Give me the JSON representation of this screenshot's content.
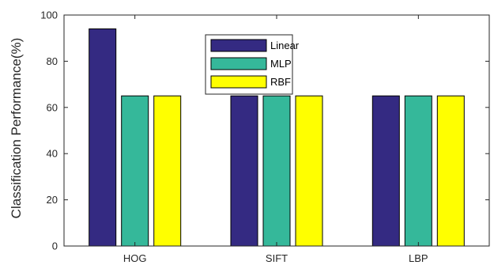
{
  "chart_data": {
    "type": "bar",
    "categories": [
      "HOG",
      "SIFT",
      "LBP"
    ],
    "series": [
      {
        "name": "Linear",
        "color": "#342a82",
        "values": [
          94,
          65,
          65
        ]
      },
      {
        "name": "MLP",
        "color": "#35b89a",
        "values": [
          65,
          65,
          65
        ]
      },
      {
        "name": "RBF",
        "color": "#ffff00",
        "values": [
          65,
          65,
          65
        ]
      }
    ],
    "ylabel": "Classification Performance(%)",
    "xlabel": "",
    "ylim": [
      0,
      100
    ],
    "yticks": [
      0,
      20,
      40,
      60,
      80,
      100
    ],
    "grid": false,
    "legend_position": "top-center"
  }
}
